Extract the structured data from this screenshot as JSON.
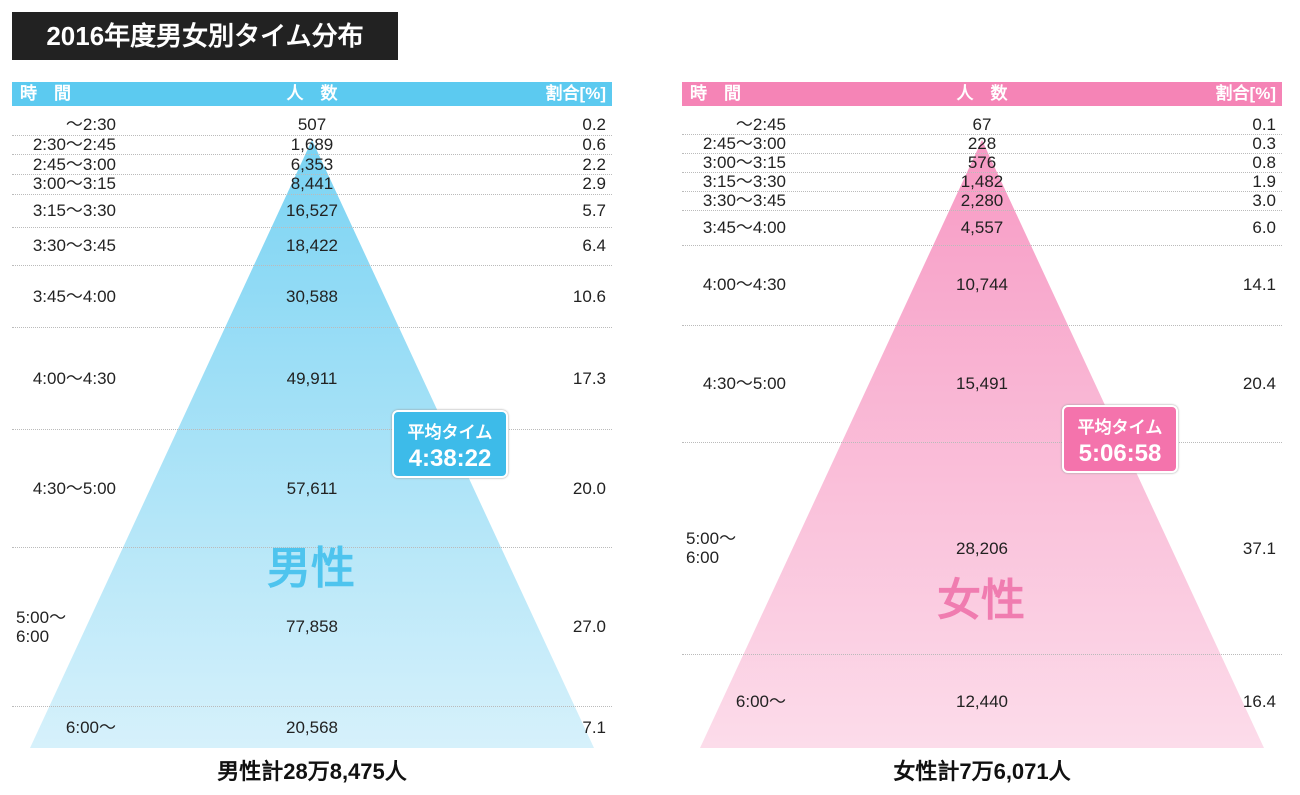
{
  "title": "2016年度男女別タイム分布",
  "panels": [
    {
      "headers": [
        "時　間",
        "人　数",
        "割合[%]"
      ],
      "rows": [
        {
          "time": "〜2:30",
          "count": "507",
          "share": "0.2"
        },
        {
          "time": "2:30〜2:45",
          "count": "1,689",
          "share": "0.6"
        },
        {
          "time": "2:45〜3:00",
          "count": "6,353",
          "share": "2.2"
        },
        {
          "time": "3:00〜3:15",
          "count": "8,441",
          "share": "2.9"
        },
        {
          "time": "3:15〜3:30",
          "count": "16,527",
          "share": "5.7"
        },
        {
          "time": "3:30〜3:45",
          "count": "18,422",
          "share": "6.4"
        },
        {
          "time": "3:45〜4:00",
          "count": "30,588",
          "share": "10.6"
        },
        {
          "time": "4:00〜4:30",
          "count": "49,911",
          "share": "17.3"
        },
        {
          "time": "4:30〜5:00",
          "count": "57,611",
          "share": "20.0"
        },
        {
          "time": "5:00〜\n6:00",
          "count": "77,858",
          "share": "27.0"
        },
        {
          "time": "6:00〜",
          "count": "20,568",
          "share": "7.1"
        }
      ],
      "avg_label": "平均タイム",
      "avg_time": "4:38:22",
      "gender": "男性",
      "total": "男性計28万8,475人"
    },
    {
      "headers": [
        "時　間",
        "人　数",
        "割合[%]"
      ],
      "rows": [
        {
          "time": "〜2:45",
          "count": "67",
          "share": "0.1"
        },
        {
          "time": "2:45〜3:00",
          "count": "228",
          "share": "0.3"
        },
        {
          "time": "3:00〜3:15",
          "count": "576",
          "share": "0.8"
        },
        {
          "time": "3:15〜3:30",
          "count": "1,482",
          "share": "1.9"
        },
        {
          "time": "3:30〜3:45",
          "count": "2,280",
          "share": "3.0"
        },
        {
          "time": "3:45〜4:00",
          "count": "4,557",
          "share": "6.0"
        },
        {
          "time": "4:00〜4:30",
          "count": "10,744",
          "share": "14.1"
        },
        {
          "time": "4:30〜5:00",
          "count": "15,491",
          "share": "20.4"
        },
        {
          "time": "5:00〜\n6:00",
          "count": "28,206",
          "share": "37.1"
        },
        {
          "time": "6:00〜",
          "count": "12,440",
          "share": "16.4"
        }
      ],
      "avg_label": "平均タイム",
      "avg_time": "5:06:58",
      "gender": "女性",
      "total": "女性計7万6,071人"
    }
  ]
}
